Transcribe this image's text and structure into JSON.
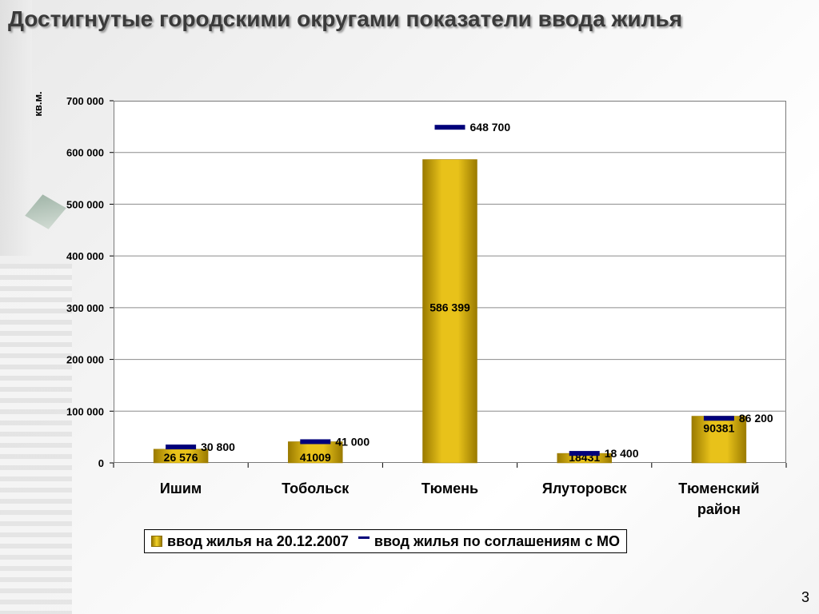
{
  "slide": {
    "title": "Достигнутые городскими округами показатели ввода жилья",
    "page_number": "3"
  },
  "colors": {
    "bar_fill": "#e8c21a",
    "bar_edge": "#9a7a00",
    "target_marker": "#00007a",
    "grid": "#8c8c8c"
  },
  "chart_data": {
    "type": "bar",
    "title": "",
    "xlabel": "",
    "ylabel": "кв.м.",
    "ylim": [
      0,
      700000
    ],
    "y_ticks": [
      0,
      100000,
      200000,
      300000,
      400000,
      500000,
      600000,
      700000
    ],
    "y_tick_labels": [
      "0",
      "100 000",
      "200 000",
      "300 000",
      "400 000",
      "500 000",
      "600 000",
      "700 000"
    ],
    "grid": true,
    "legend_position": "bottom",
    "categories": [
      [
        "Ишим"
      ],
      [
        "Тобольск"
      ],
      [
        "Тюмень"
      ],
      [
        "Ялуторовск"
      ],
      [
        "Тюменский",
        "район"
      ]
    ],
    "series": [
      {
        "name": "ввод жилья на 20.12.2007",
        "kind": "bar",
        "values": [
          26576,
          41009,
          586399,
          18431,
          90381
        ],
        "labels": [
          "26 576",
          "41009",
          "586 399",
          "18431",
          "90381"
        ]
      },
      {
        "name": "ввод жилья по соглашениям с МО",
        "kind": "marker",
        "values": [
          30800,
          41000,
          648700,
          18400,
          86200
        ],
        "labels": [
          "30 800",
          "41 000",
          "648 700",
          "18 400",
          "86 200"
        ]
      }
    ]
  }
}
